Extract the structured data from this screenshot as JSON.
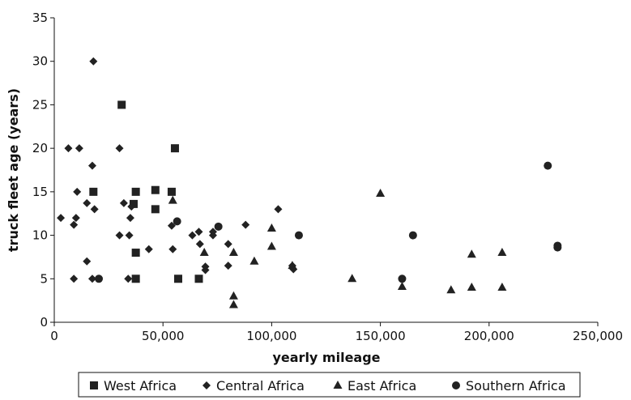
{
  "chart_data": {
    "type": "scatter",
    "title": "",
    "xlabel": "yearly mileage",
    "ylabel": "truck fleet age (years)",
    "xlim": [
      0,
      250000
    ],
    "ylim": [
      0,
      35
    ],
    "x_ticks": [
      0,
      50000,
      100000,
      150000,
      200000,
      250000
    ],
    "x_tick_labels": [
      "0",
      "50,000",
      "100,000",
      "150,000",
      "200,000",
      "250,000"
    ],
    "y_ticks": [
      0,
      5,
      10,
      15,
      20,
      25,
      30,
      35
    ],
    "y_tick_labels": [
      "0",
      "5",
      "10",
      "15",
      "20",
      "25",
      "30",
      "35"
    ],
    "grid": false,
    "legend_position": "bottom",
    "series": [
      {
        "name": "West Africa",
        "marker": "square",
        "points": [
          [
            18000,
            15
          ],
          [
            31000,
            25
          ],
          [
            36500,
            13.6
          ],
          [
            37500,
            15
          ],
          [
            37500,
            8
          ],
          [
            37500,
            5
          ],
          [
            46500,
            15.2
          ],
          [
            46500,
            13
          ],
          [
            54000,
            15
          ],
          [
            55500,
            20
          ],
          [
            57000,
            5
          ],
          [
            66500,
            5
          ]
        ]
      },
      {
        "name": "Central Africa",
        "marker": "diamond",
        "points": [
          [
            3000,
            12
          ],
          [
            6500,
            20
          ],
          [
            9000,
            11.2
          ],
          [
            9000,
            5
          ],
          [
            10000,
            12
          ],
          [
            10500,
            15
          ],
          [
            11500,
            20
          ],
          [
            15000,
            13.7
          ],
          [
            15000,
            7
          ],
          [
            17500,
            18
          ],
          [
            17500,
            5
          ],
          [
            18000,
            30
          ],
          [
            18500,
            13
          ],
          [
            30000,
            20
          ],
          [
            30000,
            10
          ],
          [
            32000,
            13.7
          ],
          [
            34000,
            5
          ],
          [
            34500,
            10
          ],
          [
            35000,
            12
          ],
          [
            35500,
            13.3
          ],
          [
            43500,
            8.4
          ],
          [
            54000,
            11.1
          ],
          [
            54500,
            8.4
          ],
          [
            63500,
            10
          ],
          [
            66500,
            10.4
          ],
          [
            67000,
            9
          ],
          [
            69500,
            6.4
          ],
          [
            69500,
            6
          ],
          [
            73000,
            10
          ],
          [
            73000,
            10.4
          ],
          [
            80000,
            9
          ],
          [
            80000,
            6.5
          ],
          [
            88000,
            11.2
          ],
          [
            103000,
            13
          ],
          [
            109500,
            6.5
          ],
          [
            110000,
            6.1
          ]
        ]
      },
      {
        "name": "East Africa",
        "marker": "triangle",
        "points": [
          [
            54500,
            14
          ],
          [
            69000,
            8
          ],
          [
            82500,
            8
          ],
          [
            82500,
            3
          ],
          [
            82500,
            2
          ],
          [
            92000,
            7
          ],
          [
            100000,
            10.8
          ],
          [
            100000,
            8.7
          ],
          [
            109500,
            6.5
          ],
          [
            137000,
            5
          ],
          [
            150000,
            14.8
          ],
          [
            160000,
            4.1
          ],
          [
            182500,
            3.7
          ],
          [
            192000,
            7.8
          ],
          [
            192000,
            4
          ],
          [
            206000,
            8
          ],
          [
            206000,
            4
          ]
        ]
      },
      {
        "name": "Southern Africa",
        "marker": "circle",
        "points": [
          [
            20500,
            5
          ],
          [
            56500,
            11.6
          ],
          [
            75500,
            11
          ],
          [
            112500,
            10
          ],
          [
            160000,
            5
          ],
          [
            165000,
            10
          ],
          [
            227000,
            18
          ],
          [
            231500,
            8.8
          ],
          [
            231500,
            8.6
          ]
        ]
      }
    ]
  }
}
